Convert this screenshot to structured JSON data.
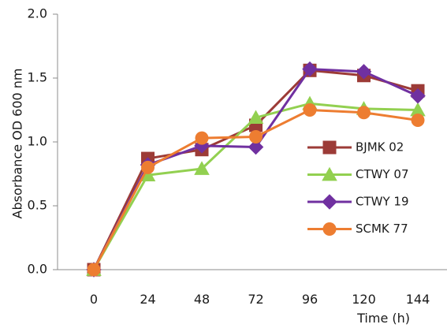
{
  "chart_data": {
    "type": "line",
    "xlabel": "Time (h)",
    "ylabel": "Absorbance OD 600 nm",
    "x": [
      0,
      24,
      48,
      72,
      96,
      120,
      144
    ],
    "x_tick_labels": [
      "0",
      "24",
      "48",
      "72",
      "96",
      "120",
      "144"
    ],
    "y_tick_labels": [
      "0.0",
      "0.5",
      "1.0",
      "1.5",
      "2.0"
    ],
    "ylim": [
      0,
      2.0
    ],
    "grid": false,
    "legend_position": "right",
    "series": [
      {
        "name": "BJMK 02",
        "marker": "square",
        "color": "#9c3b37",
        "values": [
          0.0,
          0.87,
          0.94,
          1.13,
          1.56,
          1.52,
          1.4
        ]
      },
      {
        "name": "CTWY 07",
        "marker": "triangle",
        "color": "#92d050",
        "values": [
          0.0,
          0.74,
          0.79,
          1.19,
          1.3,
          1.26,
          1.25
        ]
      },
      {
        "name": "CTWY 19",
        "marker": "diamond",
        "color": "#7030a0",
        "values": [
          0.0,
          0.82,
          0.97,
          0.96,
          1.57,
          1.55,
          1.36
        ]
      },
      {
        "name": "SCMK 77",
        "marker": "circle",
        "color": "#ed7d31",
        "values": [
          0.0,
          0.8,
          1.03,
          1.04,
          1.25,
          1.23,
          1.17
        ]
      }
    ]
  }
}
